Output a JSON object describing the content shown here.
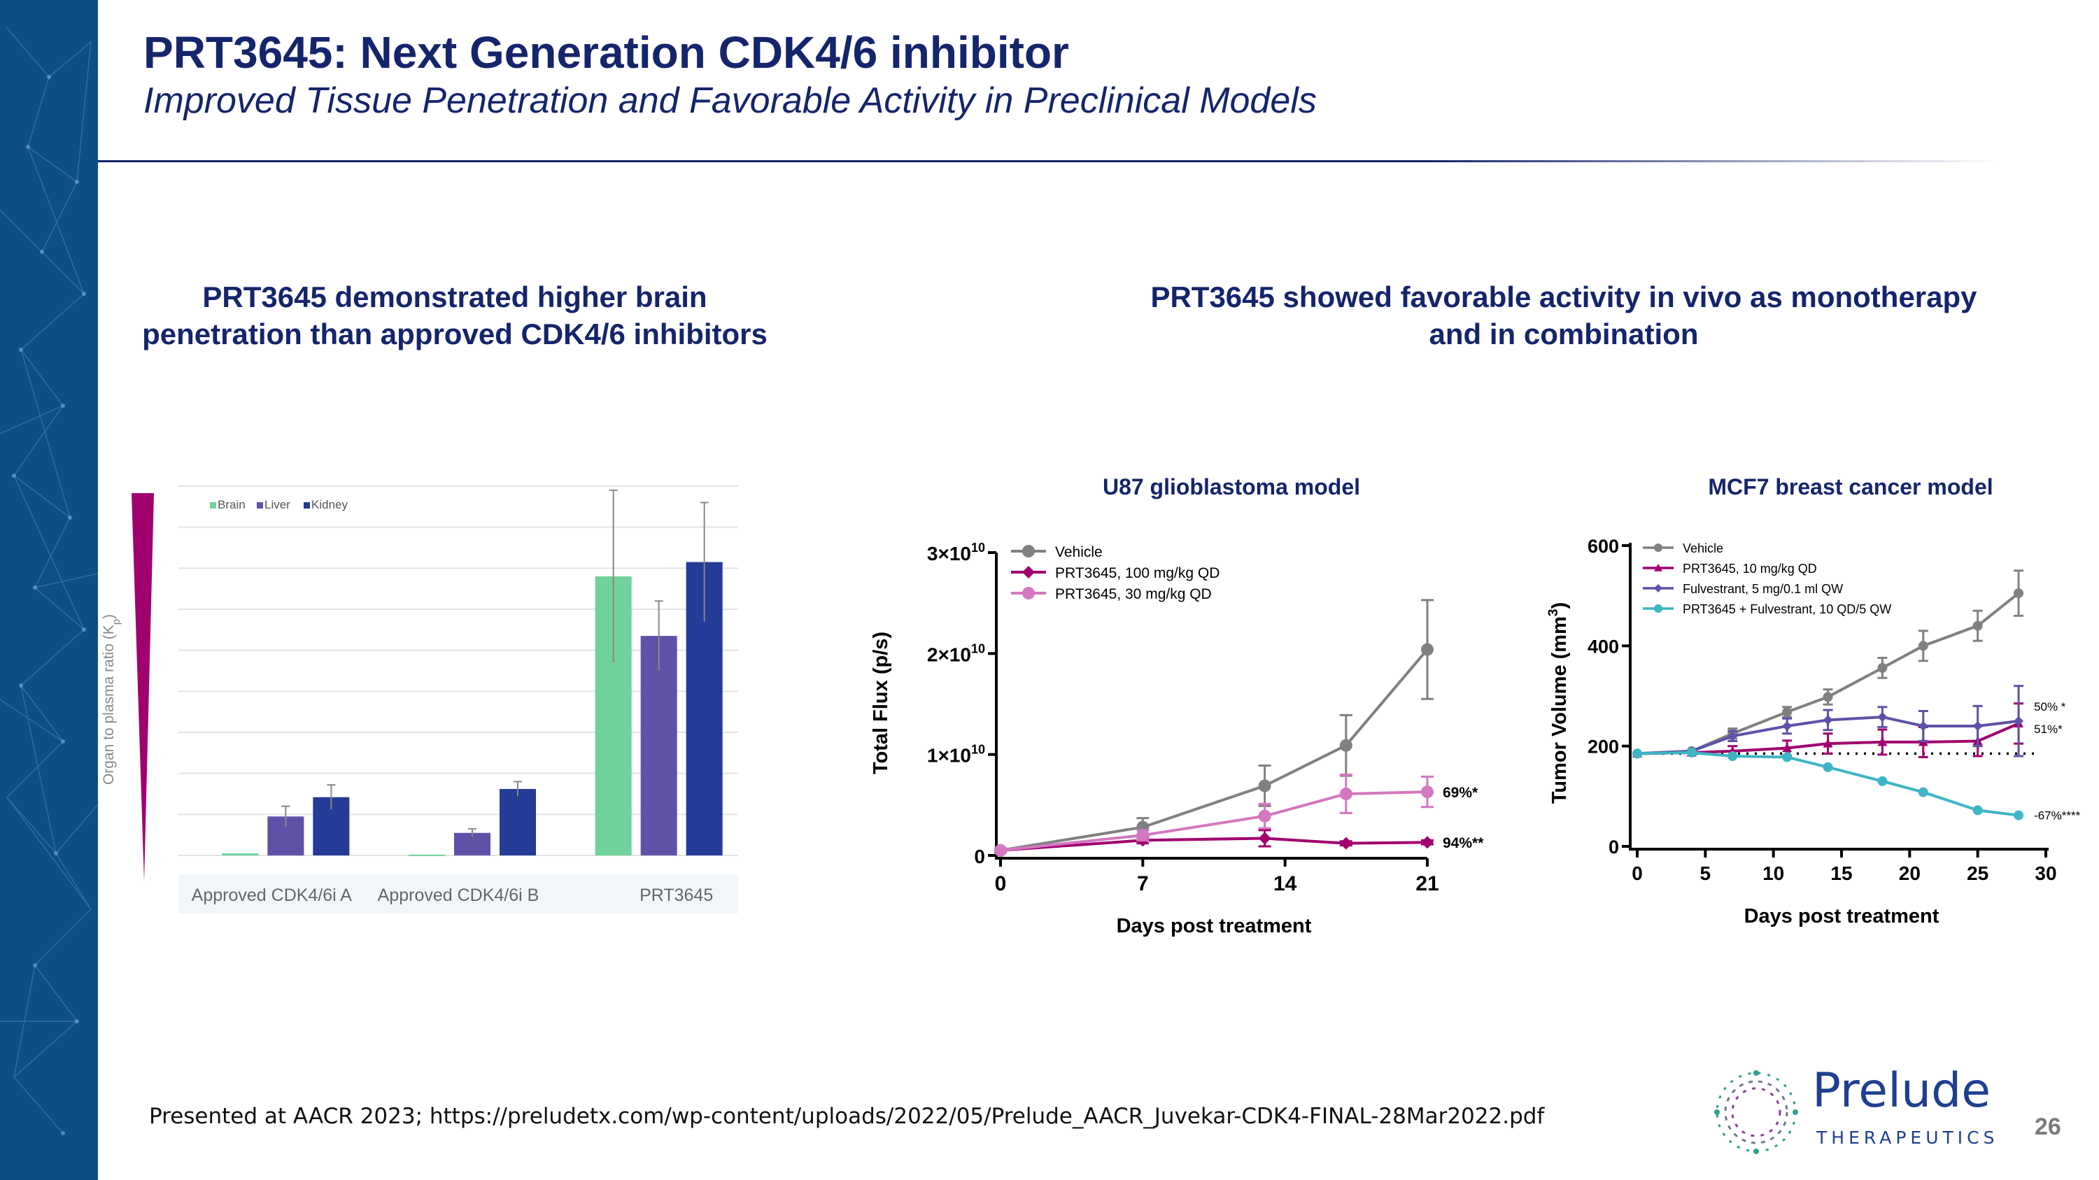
{
  "slide": {
    "title": "PRT3645: Next Generation CDK4/6 inhibitor",
    "subtitle": "Improved Tissue Penetration and Favorable Activity in Preclinical Models",
    "left_heading_line1": "PRT3645 demonstrated higher brain",
    "left_heading_line2": "penetration than approved CDK4/6 inhibitors",
    "right_heading_line1": "PRT3645 showed favorable activity in vivo as monotherapy",
    "right_heading_line2": "and in combination",
    "footer": "Presented at AACR 2023; https://preludetx.com/wp-content/uploads/2022/05/Prelude_AACR_Juvekar-CDK4-FINAL-28Mar2022.pdf",
    "page_number": "26",
    "logo_name": "Prelude",
    "logo_sub": "THERAPEUTICS",
    "colors": {
      "navy": "#15256b",
      "sidebar": "#0b4f86",
      "wedge": "#a0006e"
    }
  },
  "chart_data": [
    {
      "id": "brain-penetration",
      "type": "bar",
      "title": "",
      "ylabel_parts": [
        "Organ to plasma ratio (K",
        "p",
        ")"
      ],
      "categories": [
        "Approved CDK4/6i A",
        "Approved CDK4/6i B",
        "PRT3645"
      ],
      "ylim": [
        0,
        9
      ],
      "grid": true,
      "legend_position": "top-left",
      "series": [
        {
          "name": "Brain",
          "color": "#70d29a",
          "values": [
            0.05,
            0.02,
            6.8
          ],
          "errors": [
            0,
            0,
            2.1
          ]
        },
        {
          "name": "Liver",
          "color": "#5e52a8",
          "values": [
            0.95,
            0.55,
            5.35
          ],
          "errors": [
            0.25,
            0.1,
            0.85
          ]
        },
        {
          "name": "Kidney",
          "color": "#243b97",
          "values": [
            1.42,
            1.62,
            7.15
          ],
          "errors": [
            0.3,
            0.18,
            1.45
          ]
        }
      ]
    },
    {
      "id": "u87",
      "type": "line",
      "title": "U87 glioblastoma model",
      "xlabel": "Days post treatment",
      "ylabel": "Total Flux (p/s)",
      "xlim": [
        0,
        21
      ],
      "xticks": [
        0,
        7,
        14,
        21
      ],
      "ylim": [
        0,
        30000000000
      ],
      "yticks": [
        0,
        10000000000,
        20000000000,
        30000000000
      ],
      "ytick_labels": [
        {
          "base": "0",
          "exp": ""
        },
        {
          "base": "1×10",
          "exp": "10"
        },
        {
          "base": "2×10",
          "exp": "10"
        },
        {
          "base": "3×10",
          "exp": "10"
        }
      ],
      "legend_position": "top-left",
      "series": [
        {
          "name": "Vehicle",
          "color": "#808080",
          "marker": "circle",
          "x": [
            0,
            7,
            13,
            17,
            21
          ],
          "y": [
            500000000,
            2800000000,
            6900000000,
            10900000000,
            20400000000
          ],
          "err": [
            200000000,
            900000000,
            2000000000,
            3000000000,
            4900000000
          ]
        },
        {
          "name": "PRT3645, 100 mg/kg QD",
          "color": "#a0006e",
          "marker": "diamond",
          "x": [
            0,
            7,
            13,
            17,
            21
          ],
          "y": [
            500000000,
            1500000000,
            1700000000,
            1200000000,
            1300000000
          ],
          "err": [
            100000000,
            300000000,
            800000000,
            200000000,
            200000000
          ]
        },
        {
          "name": "PRT3645, 30 mg/kg QD",
          "color": "#d277c0",
          "marker": "circle",
          "x": [
            0,
            7,
            13,
            17,
            21
          ],
          "y": [
            500000000,
            2000000000,
            3900000000,
            6100000000,
            6300000000
          ],
          "err": [
            100000000,
            500000000,
            1200000000,
            1900000000,
            1500000000
          ]
        }
      ],
      "annotations": [
        {
          "text": "69%*",
          "x": 21,
          "y": 6300000000
        },
        {
          "text": "94%**",
          "x": 21,
          "y": 1300000000
        }
      ]
    },
    {
      "id": "mcf7",
      "type": "line",
      "title": "MCF7 breast cancer model",
      "xlabel": "Days post treatment",
      "ylabel_parts": [
        "Tumor Volume (mm",
        "3",
        ")"
      ],
      "xlim": [
        0,
        30
      ],
      "xticks": [
        0,
        5,
        10,
        15,
        20,
        25,
        30
      ],
      "ylim": [
        0,
        600
      ],
      "yticks": [
        0,
        200,
        400,
        600
      ],
      "baseline": 185,
      "legend_position": "top-left",
      "series": [
        {
          "name": "Vehicle",
          "color": "#808080",
          "marker": "circle",
          "x": [
            0,
            4,
            7,
            11,
            14,
            18,
            21,
            25,
            28
          ],
          "y": [
            185,
            190,
            225,
            268,
            298,
            356,
            400,
            440,
            505
          ],
          "err": [
            5,
            5,
            10,
            10,
            15,
            20,
            30,
            30,
            45
          ]
        },
        {
          "name": "PRT3645, 10 mg/kg QD",
          "color": "#a0006e",
          "marker": "triangle",
          "x": [
            0,
            4,
            7,
            11,
            14,
            18,
            21,
            25,
            28
          ],
          "y": [
            185,
            187,
            190,
            196,
            205,
            208,
            208,
            210,
            245
          ],
          "err": [
            5,
            5,
            10,
            15,
            20,
            25,
            30,
            30,
            40
          ]
        },
        {
          "name": "Fulvestrant, 5 mg/0.1 ml QW",
          "color": "#5e52a8",
          "marker": "diamond",
          "x": [
            0,
            4,
            7,
            11,
            14,
            18,
            21,
            25,
            28
          ],
          "y": [
            185,
            190,
            220,
            240,
            252,
            258,
            240,
            240,
            250
          ],
          "err": [
            5,
            5,
            10,
            15,
            20,
            20,
            30,
            40,
            70
          ]
        },
        {
          "name": "PRT3645 + Fulvestrant, 10 QD/5 QW",
          "color": "#3db5c4",
          "marker": "circle",
          "x": [
            0,
            4,
            7,
            11,
            14,
            18,
            21,
            25,
            28
          ],
          "y": [
            185,
            187,
            180,
            178,
            158,
            130,
            108,
            72,
            62
          ],
          "err": [
            3,
            3,
            5,
            5,
            5,
            5,
            5,
            5,
            5
          ]
        }
      ],
      "annotations": [
        {
          "text": "50% *",
          "x": 28,
          "y": 262
        },
        {
          "text": "51%*",
          "x": 28,
          "y": 240
        },
        {
          "text": "-67%****",
          "x": 28,
          "y": 62
        }
      ]
    }
  ]
}
